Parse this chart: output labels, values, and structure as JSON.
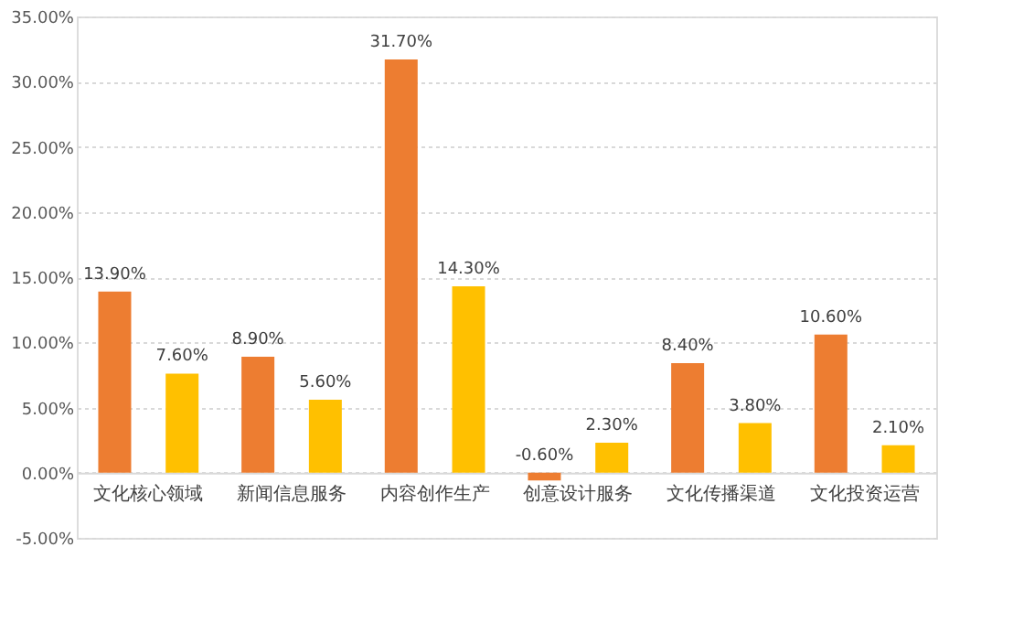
{
  "chart_data": {
    "type": "bar",
    "categories": [
      "文化核心领域",
      "新闻信息服务",
      "内容创作生产",
      "创意设计服务",
      "文化传播渠道",
      "文化投资运营"
    ],
    "series": [
      {
        "color": "#ed7d31",
        "values": [
          13.9,
          8.9,
          31.7,
          -0.6,
          8.4,
          10.6
        ],
        "value_labels": [
          "13.90%",
          "8.90%",
          "31.70%",
          "-0.60%",
          "8.40%",
          "10.60%"
        ]
      },
      {
        "color": "#ffc000",
        "values": [
          7.6,
          5.6,
          14.3,
          2.3,
          3.8,
          2.1
        ],
        "value_labels": [
          "7.60%",
          "5.60%",
          "14.30%",
          "2.30%",
          "3.80%",
          "2.10%"
        ]
      }
    ],
    "ylim": [
      -5,
      35
    ],
    "yticks": [
      {
        "value": -5,
        "label": "-5.00%"
      },
      {
        "value": 0,
        "label": "0.00%"
      },
      {
        "value": 5,
        "label": "5.00%"
      },
      {
        "value": 10,
        "label": "10.00%"
      },
      {
        "value": 15,
        "label": "15.00%"
      },
      {
        "value": 20,
        "label": "20.00%"
      },
      {
        "value": 25,
        "label": "25.00%"
      },
      {
        "value": 30,
        "label": "30.00%"
      },
      {
        "value": 35,
        "label": "35.00%"
      }
    ],
    "grid": "y",
    "legend": false
  }
}
